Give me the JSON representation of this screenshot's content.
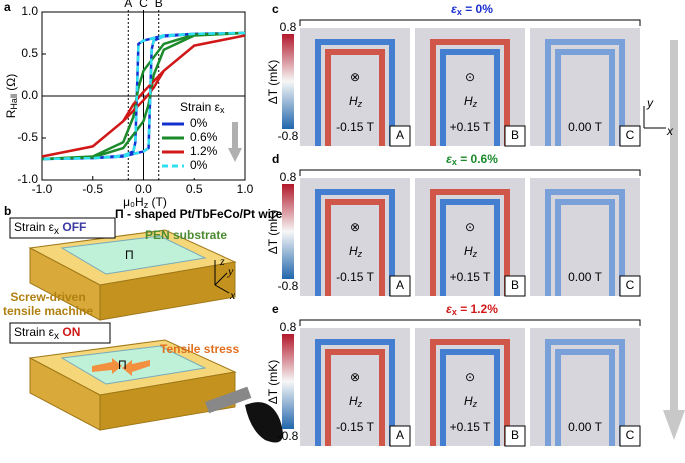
{
  "chart_data": {
    "type": "line",
    "panel_label": "a",
    "xlabel": "μ₀H",
    "xlabel_sub": "z",
    "xlabel_unit": " (T)",
    "ylabel": "R",
    "ylabel_sub": "Hall",
    "ylabel_unit": " (Ω)",
    "xlim": [
      -1,
      1
    ],
    "xticks": [
      {
        "value": -1,
        "label": "-1.0"
      },
      {
        "value": -0.5,
        "label": "-0.5"
      },
      {
        "value": 0,
        "label": "0.0"
      },
      {
        "value": 0.5,
        "label": "0.5"
      },
      {
        "value": 1,
        "label": "1.0"
      }
    ],
    "ylim": [
      -1,
      1
    ],
    "yticks": [
      {
        "value": -1,
        "label": "-1.0"
      },
      {
        "value": -0.5,
        "label": "-0.5"
      },
      {
        "value": 0,
        "label": "0.0"
      },
      {
        "value": 0.5,
        "label": "0.5"
      },
      {
        "value": 1,
        "label": "1.0"
      }
    ],
    "legend_title": "Strain ε",
    "legend_title_sub": "x",
    "legend_position": "lower right",
    "annotations": [
      {
        "label": "A",
        "x": -0.15
      },
      {
        "label": "C",
        "x": 0
      },
      {
        "label": "B",
        "x": 0.15
      }
    ],
    "x": [
      1,
      0.5,
      0.2,
      0,
      -0.05,
      -0.08,
      -0.1,
      -0.2,
      -0.5,
      -1,
      -0.5,
      -0.2,
      0,
      0.05,
      0.08,
      0.1,
      0.2,
      0.5,
      1
    ],
    "series": [
      {
        "name": "0%",
        "color": "#1530d0",
        "values": [
          0.75,
          0.74,
          0.72,
          0.66,
          0.62,
          -0.55,
          -0.66,
          -0.71,
          -0.74,
          -0.75,
          -0.74,
          -0.72,
          -0.66,
          -0.62,
          0.55,
          0.66,
          0.71,
          0.74,
          0.75
        ]
      },
      {
        "name": "0.6%",
        "color": "#1a8a2a",
        "values": [
          0.75,
          0.73,
          0.62,
          0.3,
          0.1,
          -0.1,
          -0.25,
          -0.55,
          -0.72,
          -0.75,
          -0.73,
          -0.62,
          -0.3,
          -0.1,
          0.1,
          0.25,
          0.55,
          0.72,
          0.75
        ]
      },
      {
        "name": "1.2%",
        "color": "#d01818",
        "values": [
          0.72,
          0.6,
          0.3,
          0.05,
          -0.02,
          -0.07,
          -0.1,
          -0.3,
          -0.6,
          -0.72,
          -0.6,
          -0.3,
          -0.05,
          0.02,
          0.07,
          0.1,
          0.3,
          0.6,
          0.72
        ]
      },
      {
        "name": "0%",
        "color": "#30e0f0",
        "dashed": true,
        "values": [
          0.75,
          0.74,
          0.72,
          0.66,
          0.62,
          -0.55,
          -0.66,
          -0.71,
          -0.74,
          -0.75,
          -0.74,
          -0.72,
          -0.66,
          -0.62,
          0.55,
          0.66,
          0.71,
          0.74,
          0.75
        ]
      }
    ]
  },
  "panel_b": {
    "label": "b",
    "off_prefix": "Strain ε",
    "off_sub": "x",
    "off_word": " OFF",
    "on_prefix": "Strain ε",
    "on_sub": "x",
    "on_word": " ON",
    "wire": "Π - shaped Pt/TbFeCo/Pt wire",
    "substrate": "PEN substrate",
    "machine_1": "Screw-driven",
    "machine_2": "tensile machine",
    "stress": "Tensile stress",
    "axis_x": "x",
    "axis_y": "y",
    "axis_z": "z",
    "pi": "Π"
  },
  "maps": {
    "colorbar_max": "0.8",
    "colorbar_min": "-0.8",
    "colorbar_label": "ΔT (mK)",
    "h": "H",
    "h_sub": "z",
    "axis_x": "x",
    "axis_y": "y",
    "rows": [
      {
        "label": "c",
        "symbol": "ε",
        "sub": "x",
        "value": " = 0%",
        "color": "#1a2fd0"
      },
      {
        "label": "d",
        "symbol": "ε",
        "sub": "x",
        "value": " = 0.6%",
        "color": "#1a8a2a"
      },
      {
        "label": "e",
        "symbol": "ε",
        "sub": "x",
        "value": " = 1.2%",
        "color": "#d01818"
      }
    ],
    "images": [
      {
        "field": "-0.15 T",
        "mark": "⊗",
        "letter": "A"
      },
      {
        "field": "+0.15 T",
        "mark": "⊙",
        "letter": "B"
      },
      {
        "field": "0.00 T",
        "mark": "",
        "letter": "C"
      }
    ]
  }
}
